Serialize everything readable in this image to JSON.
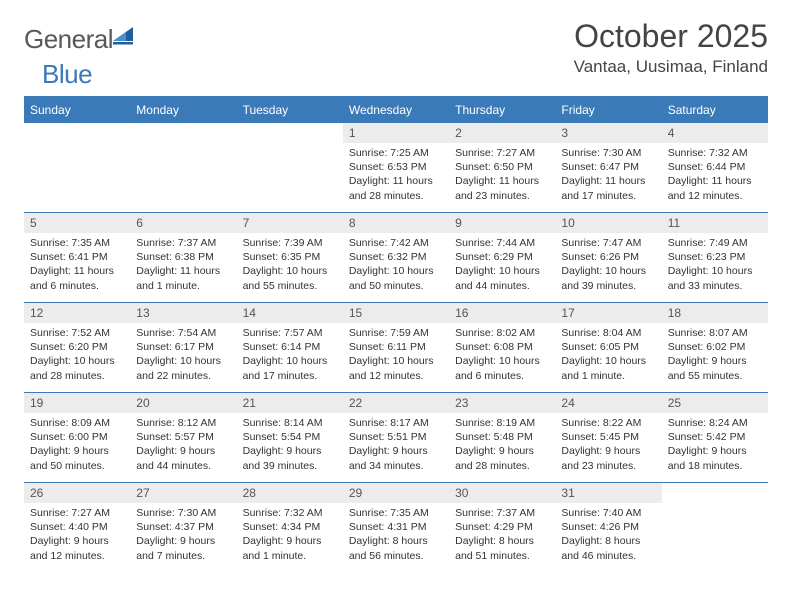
{
  "logo": {
    "word1": "General",
    "word2": "Blue"
  },
  "title": "October 2025",
  "location": "Vantaa, Uusimaa, Finland",
  "colors": {
    "accent": "#3a7ab8",
    "header_bg": "#3a7ab8",
    "header_fg": "#ffffff",
    "daynum_bg": "#ececec",
    "text": "#333333",
    "logo_gray": "#595959"
  },
  "day_headers": [
    "Sunday",
    "Monday",
    "Tuesday",
    "Wednesday",
    "Thursday",
    "Friday",
    "Saturday"
  ],
  "weeks": [
    [
      null,
      null,
      null,
      {
        "n": "1",
        "sr": "7:25 AM",
        "ss": "6:53 PM",
        "dl": "11 hours and 28 minutes."
      },
      {
        "n": "2",
        "sr": "7:27 AM",
        "ss": "6:50 PM",
        "dl": "11 hours and 23 minutes."
      },
      {
        "n": "3",
        "sr": "7:30 AM",
        "ss": "6:47 PM",
        "dl": "11 hours and 17 minutes."
      },
      {
        "n": "4",
        "sr": "7:32 AM",
        "ss": "6:44 PM",
        "dl": "11 hours and 12 minutes."
      }
    ],
    [
      {
        "n": "5",
        "sr": "7:35 AM",
        "ss": "6:41 PM",
        "dl": "11 hours and 6 minutes."
      },
      {
        "n": "6",
        "sr": "7:37 AM",
        "ss": "6:38 PM",
        "dl": "11 hours and 1 minute."
      },
      {
        "n": "7",
        "sr": "7:39 AM",
        "ss": "6:35 PM",
        "dl": "10 hours and 55 minutes."
      },
      {
        "n": "8",
        "sr": "7:42 AM",
        "ss": "6:32 PM",
        "dl": "10 hours and 50 minutes."
      },
      {
        "n": "9",
        "sr": "7:44 AM",
        "ss": "6:29 PM",
        "dl": "10 hours and 44 minutes."
      },
      {
        "n": "10",
        "sr": "7:47 AM",
        "ss": "6:26 PM",
        "dl": "10 hours and 39 minutes."
      },
      {
        "n": "11",
        "sr": "7:49 AM",
        "ss": "6:23 PM",
        "dl": "10 hours and 33 minutes."
      }
    ],
    [
      {
        "n": "12",
        "sr": "7:52 AM",
        "ss": "6:20 PM",
        "dl": "10 hours and 28 minutes."
      },
      {
        "n": "13",
        "sr": "7:54 AM",
        "ss": "6:17 PM",
        "dl": "10 hours and 22 minutes."
      },
      {
        "n": "14",
        "sr": "7:57 AM",
        "ss": "6:14 PM",
        "dl": "10 hours and 17 minutes."
      },
      {
        "n": "15",
        "sr": "7:59 AM",
        "ss": "6:11 PM",
        "dl": "10 hours and 12 minutes."
      },
      {
        "n": "16",
        "sr": "8:02 AM",
        "ss": "6:08 PM",
        "dl": "10 hours and 6 minutes."
      },
      {
        "n": "17",
        "sr": "8:04 AM",
        "ss": "6:05 PM",
        "dl": "10 hours and 1 minute."
      },
      {
        "n": "18",
        "sr": "8:07 AM",
        "ss": "6:02 PM",
        "dl": "9 hours and 55 minutes."
      }
    ],
    [
      {
        "n": "19",
        "sr": "8:09 AM",
        "ss": "6:00 PM",
        "dl": "9 hours and 50 minutes."
      },
      {
        "n": "20",
        "sr": "8:12 AM",
        "ss": "5:57 PM",
        "dl": "9 hours and 44 minutes."
      },
      {
        "n": "21",
        "sr": "8:14 AM",
        "ss": "5:54 PM",
        "dl": "9 hours and 39 minutes."
      },
      {
        "n": "22",
        "sr": "8:17 AM",
        "ss": "5:51 PM",
        "dl": "9 hours and 34 minutes."
      },
      {
        "n": "23",
        "sr": "8:19 AM",
        "ss": "5:48 PM",
        "dl": "9 hours and 28 minutes."
      },
      {
        "n": "24",
        "sr": "8:22 AM",
        "ss": "5:45 PM",
        "dl": "9 hours and 23 minutes."
      },
      {
        "n": "25",
        "sr": "8:24 AM",
        "ss": "5:42 PM",
        "dl": "9 hours and 18 minutes."
      }
    ],
    [
      {
        "n": "26",
        "sr": "7:27 AM",
        "ss": "4:40 PM",
        "dl": "9 hours and 12 minutes."
      },
      {
        "n": "27",
        "sr": "7:30 AM",
        "ss": "4:37 PM",
        "dl": "9 hours and 7 minutes."
      },
      {
        "n": "28",
        "sr": "7:32 AM",
        "ss": "4:34 PM",
        "dl": "9 hours and 1 minute."
      },
      {
        "n": "29",
        "sr": "7:35 AM",
        "ss": "4:31 PM",
        "dl": "8 hours and 56 minutes."
      },
      {
        "n": "30",
        "sr": "7:37 AM",
        "ss": "4:29 PM",
        "dl": "8 hours and 51 minutes."
      },
      {
        "n": "31",
        "sr": "7:40 AM",
        "ss": "4:26 PM",
        "dl": "8 hours and 46 minutes."
      },
      null
    ]
  ],
  "labels": {
    "sunrise": "Sunrise:",
    "sunset": "Sunset:",
    "daylight": "Daylight:"
  }
}
